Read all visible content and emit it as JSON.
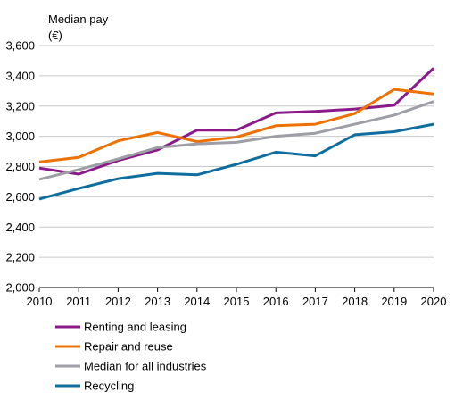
{
  "chart_data": {
    "type": "line",
    "ylabel_lines": [
      "Median pay",
      "(€)"
    ],
    "x": [
      "2010",
      "2011",
      "2012",
      "2013",
      "2014",
      "2015",
      "2016",
      "2017",
      "2018",
      "2019",
      "2020"
    ],
    "ylim": [
      2000,
      3600
    ],
    "yticks": [
      2000,
      2200,
      2400,
      2600,
      2800,
      3000,
      3200,
      3400,
      3600
    ],
    "ytick_labels": [
      "2,000",
      "2,200",
      "2,400",
      "2,600",
      "2,800",
      "3,000",
      "3,200",
      "3,400",
      "3,600"
    ],
    "grid": "horizontal",
    "legend_position": "bottom-left",
    "series": [
      {
        "name": "Renting and leasing",
        "color": "#8b1a89",
        "values": [
          2790,
          2750,
          2840,
          2910,
          3040,
          3040,
          3155,
          3165,
          3180,
          3205,
          3450
        ]
      },
      {
        "name": "Repair and reuse",
        "color": "#ee7203",
        "values": [
          2830,
          2860,
          2970,
          3025,
          2965,
          2995,
          3070,
          3080,
          3150,
          3310,
          3280
        ]
      },
      {
        "name": "Median for all industries",
        "color": "#9d9ea6",
        "values": [
          2715,
          2780,
          2850,
          2925,
          2950,
          2960,
          3000,
          3020,
          3080,
          3140,
          3230
        ]
      },
      {
        "name": "Recycling",
        "color": "#0f6e9d",
        "values": [
          2585,
          2655,
          2720,
          2755,
          2745,
          2815,
          2895,
          2870,
          3010,
          3030,
          3080
        ]
      }
    ]
  }
}
